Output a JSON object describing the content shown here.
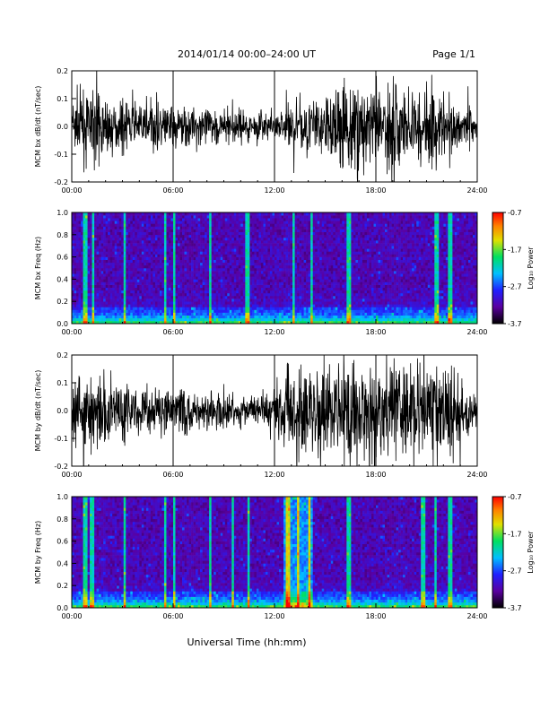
{
  "header": {
    "title": "2014/01/14   00:00–24:00 UT",
    "page": "Page 1/1"
  },
  "x_axis_label": "Universal Time (hh:mm)",
  "colors": {
    "trace": "#000000",
    "spectrogram_floor": "#1a0033",
    "colorbar_stops": [
      "#000000",
      "#5a00a0",
      "#2020ff",
      "#00c0ff",
      "#00e060",
      "#e0e000",
      "#ff8000",
      "#ff0000"
    ]
  },
  "chart_data": [
    {
      "type": "line",
      "title": "",
      "ylabel": "MCM bx dB/dt (nT/sec)",
      "xlabel": "",
      "xlim": [
        0,
        24
      ],
      "ylim": [
        -0.2,
        0.2
      ],
      "x_ticks": [
        "00:00",
        "06:00",
        "12:00",
        "18:00",
        "24:00"
      ],
      "y_ticks": [
        "-0.2",
        "-0.1",
        "0.0",
        "0.1",
        "0.2"
      ],
      "grid": true,
      "envelope_hours": [
        0,
        1,
        2,
        3,
        4,
        5,
        6,
        7,
        8,
        9,
        10,
        11,
        12,
        13,
        14,
        15,
        16,
        17,
        18,
        19,
        20,
        21,
        22,
        23,
        24
      ],
      "envelope_amplitude": [
        0.12,
        0.14,
        0.12,
        0.1,
        0.09,
        0.1,
        0.1,
        0.08,
        0.07,
        0.07,
        0.06,
        0.06,
        0.05,
        0.09,
        0.11,
        0.12,
        0.2,
        0.18,
        0.16,
        0.18,
        0.14,
        0.16,
        0.14,
        0.1,
        0.06
      ]
    },
    {
      "type": "heatmap",
      "title": "",
      "ylabel": "MCM bx Freq (Hz)",
      "xlabel": "",
      "xlim": [
        0,
        24
      ],
      "ylim": [
        0.0,
        1.0
      ],
      "x_ticks": [
        "00:00",
        "06:00",
        "12:00",
        "18:00",
        "24:00"
      ],
      "y_ticks": [
        "0.0",
        "0.2",
        "0.4",
        "0.6",
        "0.8",
        "1.0"
      ],
      "colorbar_label": "Log₁₀ Power",
      "colorbar_range": [
        -3.7,
        -0.7
      ],
      "colorbar_ticks": [
        "-0.7",
        "-1.7",
        "-2.7",
        "-3.7"
      ],
      "bright_line_hours": [
        0.8,
        1.3,
        3.1,
        5.5,
        6.1,
        8.2,
        10.4,
        13.1,
        14.2,
        16.4,
        21.6,
        22.4
      ]
    },
    {
      "type": "line",
      "title": "",
      "ylabel": "MCM by dB/dt (nT/sec)",
      "xlabel": "",
      "xlim": [
        0,
        24
      ],
      "ylim": [
        -0.2,
        0.2
      ],
      "x_ticks": [
        "00:00",
        "06:00",
        "12:00",
        "18:00",
        "24:00"
      ],
      "y_ticks": [
        "-0.2",
        "-0.1",
        "0.0",
        "0.1",
        "0.2"
      ],
      "grid": true,
      "envelope_hours": [
        0,
        1,
        2,
        3,
        4,
        5,
        6,
        7,
        8,
        9,
        10,
        11,
        12,
        13,
        14,
        15,
        16,
        17,
        18,
        19,
        20,
        21,
        22,
        23,
        24
      ],
      "envelope_amplitude": [
        0.15,
        0.16,
        0.15,
        0.12,
        0.1,
        0.1,
        0.11,
        0.08,
        0.07,
        0.07,
        0.06,
        0.07,
        0.09,
        0.2,
        0.2,
        0.2,
        0.2,
        0.2,
        0.2,
        0.2,
        0.2,
        0.18,
        0.2,
        0.14,
        0.07
      ]
    },
    {
      "type": "heatmap",
      "title": "",
      "ylabel": "MCM by Freq (Hz)",
      "xlabel": "",
      "xlim": [
        0,
        24
      ],
      "ylim": [
        0.0,
        1.0
      ],
      "x_ticks": [
        "00:00",
        "06:00",
        "12:00",
        "18:00",
        "24:00"
      ],
      "y_ticks": [
        "0.0",
        "0.2",
        "0.4",
        "0.6",
        "0.8",
        "1.0"
      ],
      "colorbar_label": "Log₁₀ Power",
      "colorbar_range": [
        -3.7,
        -0.7
      ],
      "colorbar_ticks": [
        "-0.7",
        "-1.7",
        "-2.7",
        "-3.7"
      ],
      "bright_line_hours": [
        0.8,
        1.2,
        3.1,
        5.5,
        6.1,
        8.2,
        9.5,
        10.5,
        12.8,
        13.4,
        14.1,
        16.4,
        20.8,
        21.5,
        22.4
      ]
    }
  ]
}
